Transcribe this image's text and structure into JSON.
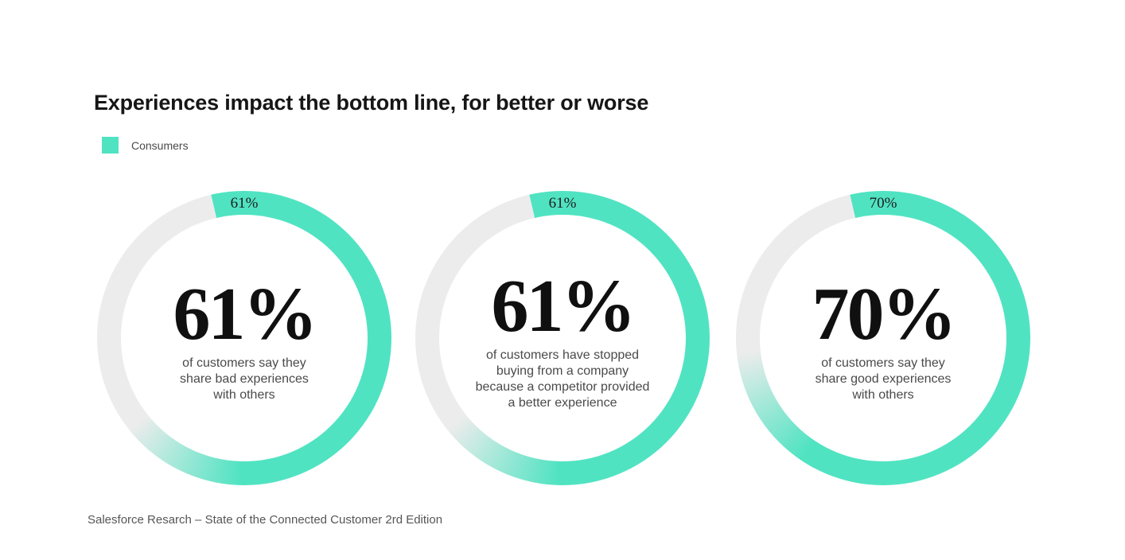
{
  "title": "Experiences impact the bottom line, for better or worse",
  "legend": {
    "label": "Consumers"
  },
  "source": "Salesforce Resarch – State of the Connected Customer 2rd Edition",
  "chart_data": {
    "type": "pie",
    "variant": "donut-small-multiples",
    "legend": [
      "Consumers"
    ],
    "legend_position": "top-left",
    "colors": {
      "value": "#50e3c2",
      "remainder": "#ececec"
    },
    "arc_start_deg": -13,
    "arc_fade_half_deg": 25,
    "donuts": [
      {
        "value": 61,
        "label": "61%",
        "center_value": "61%",
        "description": "of customers say they\nshare bad experiences\nwith others"
      },
      {
        "value": 61,
        "label": "61%",
        "center_value": "61%",
        "description": "of customers have stopped\nbuying from a company\nbecause a competitor provided\na better experience"
      },
      {
        "value": 70,
        "label": "70%",
        "center_value": "70%",
        "description": "of customers say they\nshare good experiences\nwith others"
      }
    ]
  }
}
